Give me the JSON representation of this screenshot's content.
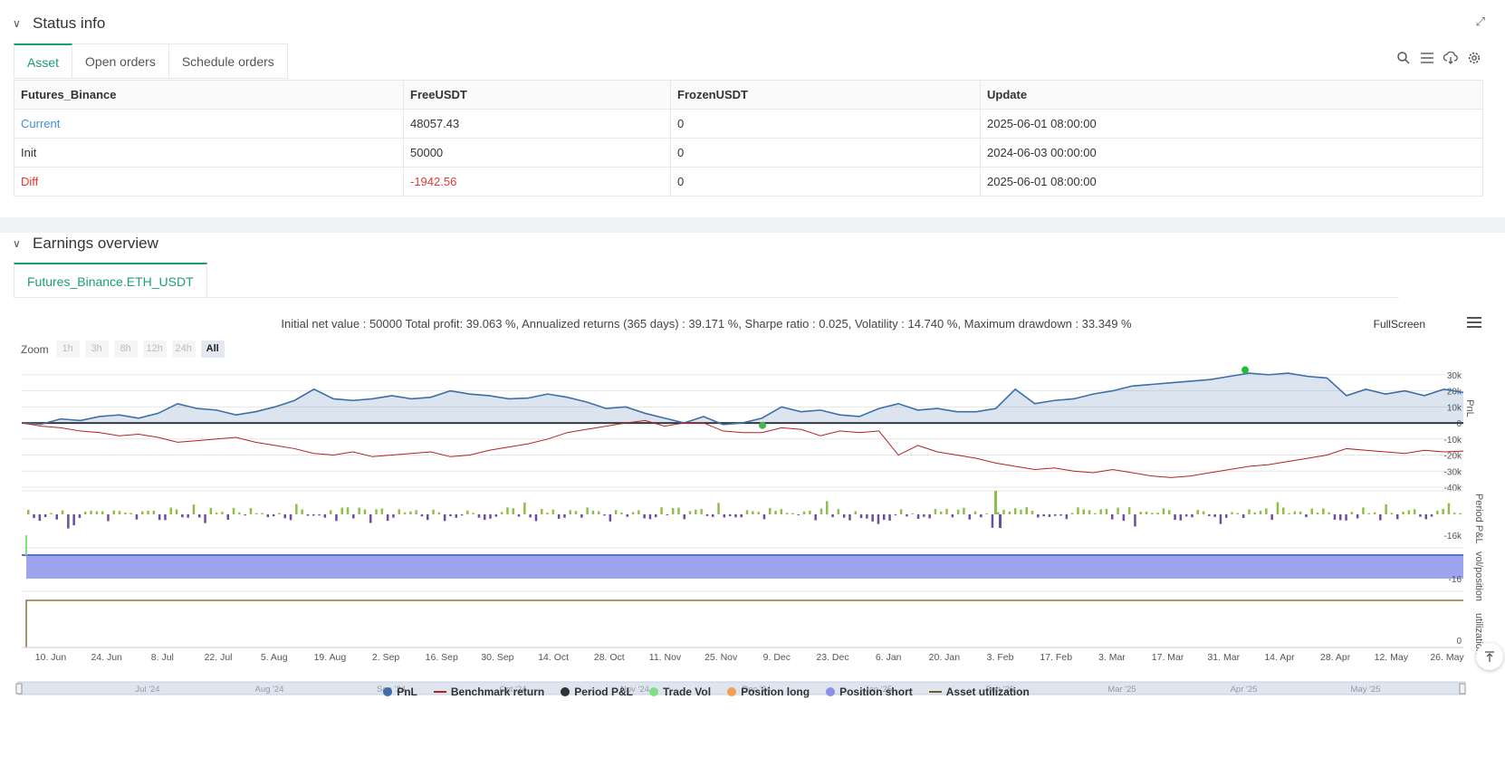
{
  "status": {
    "title": "Status info",
    "tabs": [
      "Asset",
      "Open orders",
      "Schedule orders"
    ],
    "table": {
      "headers": [
        "Futures_Binance",
        "FreeUSDT",
        "FrozenUSDT",
        "Update"
      ],
      "rows": [
        [
          "Current",
          "48057.43",
          "0",
          "2025-06-01 08:00:00"
        ],
        [
          "Init",
          "50000",
          "0",
          "2024-06-03 00:00:00"
        ],
        [
          "Diff",
          "-1942.56",
          "0",
          "2025-06-01 08:00:00"
        ]
      ]
    }
  },
  "earnings": {
    "title": "Earnings overview",
    "tab": "Futures_Binance.ETH_USDT",
    "summary": "Initial net value : 50000 Total profit: 39.063 %, Annualized returns (365 days) : 39.171 %, Sharpe ratio : 0.025, Volatility : 14.740 %, Maximum drawdown : 33.349 %",
    "fullscreen": "FullScreen",
    "zoom_label": "Zoom",
    "zoom_buttons": [
      "1h",
      "3h",
      "8h",
      "12h",
      "24h",
      "All"
    ]
  },
  "chart_data": {
    "type": "line",
    "x_ticks": [
      "10. Jun",
      "24. Jun",
      "8. Jul",
      "22. Jul",
      "5. Aug",
      "19. Aug",
      "2. Sep",
      "16. Sep",
      "30. Sep",
      "14. Oct",
      "28. Oct",
      "11. Nov",
      "25. Nov",
      "9. Dec",
      "23. Dec",
      "6. Jan",
      "20. Jan",
      "3. Feb",
      "17. Feb",
      "3. Mar",
      "17. Mar",
      "31. Mar",
      "14. Apr",
      "28. Apr",
      "12. May",
      "26. May"
    ],
    "navigator_ticks": [
      "Jul '24",
      "Aug '24",
      "Sep '24",
      "Oct '24",
      "Nov '24",
      "Dec '24",
      "Jan '25",
      "Feb '25",
      "Mar '25",
      "Apr '25",
      "May '25"
    ],
    "pnl_axis_ticks": [
      "30k",
      "20k",
      "10k",
      "0",
      "-10k",
      "-20k",
      "-30k",
      "-40k"
    ],
    "pnl_ylim": [
      -40000,
      35000
    ],
    "period_axis_ticks": [
      "-16k"
    ],
    "vol_axis_ticks": [
      "-16"
    ],
    "util_axis_ticks": [
      "0"
    ],
    "pane_labels": [
      "PnL",
      "Period P&L",
      "vol/position",
      "utilization"
    ],
    "series": [
      {
        "name": "PnL",
        "color": "#3d6fa8",
        "values": [
          0,
          -800,
          2500,
          1500,
          4000,
          5000,
          3000,
          6000,
          12000,
          9000,
          8000,
          5000,
          7000,
          10000,
          14000,
          21000,
          15000,
          14000,
          15000,
          17000,
          15000,
          16000,
          20000,
          18000,
          17000,
          15000,
          15500,
          18000,
          16000,
          13000,
          9000,
          10000,
          6000,
          3000,
          0,
          4000,
          -1000,
          0,
          3000,
          10000,
          7000,
          8000,
          5000,
          4000,
          9000,
          12000,
          8000,
          9000,
          7000,
          7000,
          9000,
          21000,
          12000,
          14000,
          15000,
          18000,
          20000,
          23000,
          24000,
          25000,
          26000,
          27000,
          29000,
          31000,
          30000,
          31000,
          29000,
          28000,
          17000,
          21000,
          18000,
          20000,
          17000,
          21000,
          19000
        ]
      },
      {
        "name": "Benchmark return",
        "color": "#b22222",
        "values": [
          0,
          -2000,
          -3000,
          -5000,
          -6000,
          -8000,
          -7000,
          -9000,
          -12000,
          -11000,
          -10000,
          -9000,
          -12000,
          -14000,
          -16000,
          -19000,
          -20000,
          -18000,
          -21000,
          -20000,
          -19000,
          -18000,
          -21000,
          -20000,
          -17000,
          -15000,
          -13000,
          -10000,
          -6000,
          -4000,
          -2000,
          0,
          1500,
          -2000,
          0,
          0,
          -5000,
          -6000,
          -6000,
          -3000,
          -4000,
          -8000,
          -5000,
          -6000,
          -5000,
          -20000,
          -14000,
          -18000,
          -20000,
          -22000,
          -25000,
          -27000,
          -29000,
          -28000,
          -30000,
          -31000,
          -29000,
          -31000,
          -33000,
          -34000,
          -33000,
          -31000,
          -29000,
          -27000,
          -26000,
          -24000,
          -22000,
          -20000,
          -16000,
          -17000,
          -18000,
          -19000,
          -17000,
          -18000,
          -17500
        ]
      },
      {
        "name": "Period P&L",
        "color": "#333333"
      },
      {
        "name": "Trade Vol",
        "color": "#7fe07f"
      },
      {
        "name": "Position long",
        "color": "#f0a050"
      },
      {
        "name": "Position short",
        "color": "#8b8fe8"
      },
      {
        "name": "Asset utilization",
        "color": "#7a5c1e"
      }
    ]
  }
}
